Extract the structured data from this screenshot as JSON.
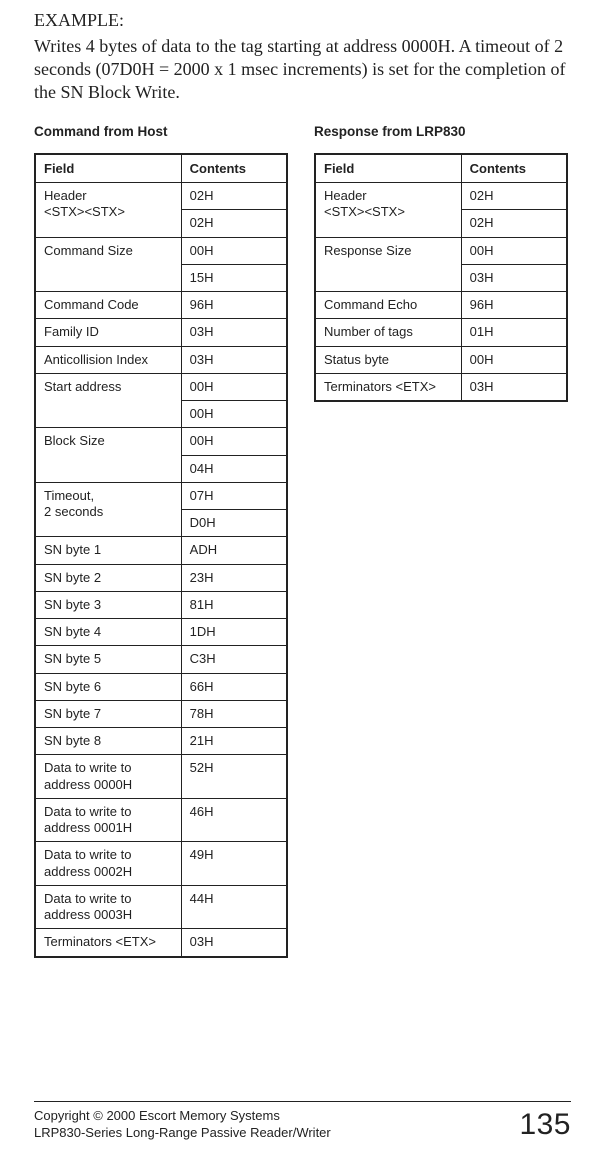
{
  "exampleLabel": "EXAMPLE:",
  "exampleText": "Writes 4 bytes of data to the tag starting at address 0000H. A timeout of 2 seconds (07D0H = 2000 x 1 msec increments) is set for the completion of the SN Block Write.",
  "leftTitle": "Command from Host",
  "rightTitle": "Response from LRP830",
  "headers": {
    "field": "Field",
    "contents": "Contents"
  },
  "left": {
    "header": {
      "field": "Header\n<STX><STX>",
      "c1": "02H",
      "c2": "02H"
    },
    "cmdSize": {
      "field": "Command Size",
      "c1": "00H",
      "c2": "15H"
    },
    "cmdCode": {
      "field": "Command Code",
      "c": "96H"
    },
    "familyId": {
      "field": "Family ID",
      "c": "03H"
    },
    "anticoll": {
      "field": "Anticollision Index",
      "c": "03H"
    },
    "startAddr": {
      "field": "Start address",
      "c1": "00H",
      "c2": "00H"
    },
    "blockSize": {
      "field": "Block Size",
      "c1": "00H",
      "c2": "04H"
    },
    "timeout": {
      "field": "Timeout,\n2 seconds",
      "c1": "07H",
      "c2": "D0H"
    },
    "sn1": {
      "field": "SN byte 1",
      "c": "ADH"
    },
    "sn2": {
      "field": "SN byte 2",
      "c": "23H"
    },
    "sn3": {
      "field": "SN byte 3",
      "c": "81H"
    },
    "sn4": {
      "field": "SN byte 4",
      "c": "1DH"
    },
    "sn5": {
      "field": "SN byte 5",
      "c": "C3H"
    },
    "sn6": {
      "field": "SN byte 6",
      "c": "66H"
    },
    "sn7": {
      "field": "SN byte 7",
      "c": "78H"
    },
    "sn8": {
      "field": "SN byte 8",
      "c": "21H"
    },
    "d0": {
      "field": "Data to write to\naddress 0000H",
      "c": "52H"
    },
    "d1": {
      "field": "Data to write to\naddress 0001H",
      "c": "46H"
    },
    "d2": {
      "field": "Data to write to\naddress 0002H",
      "c": "49H"
    },
    "d3": {
      "field": "Data to write to\naddress 0003H",
      "c": "44H"
    },
    "term": {
      "field": "Terminators <ETX>",
      "c": "03H"
    }
  },
  "right": {
    "header": {
      "field": "Header\n<STX><STX>",
      "c1": "02H",
      "c2": "02H"
    },
    "respSize": {
      "field": "Response Size",
      "c1": "00H",
      "c2": "03H"
    },
    "cmdEcho": {
      "field": "Command Echo",
      "c": "96H"
    },
    "numTags": {
      "field": "Number of tags",
      "c": "01H"
    },
    "status": {
      "field": "Status byte",
      "c": "00H"
    },
    "term": {
      "field": "Terminators <ETX>",
      "c": "03H"
    }
  },
  "footer": {
    "line1": "Copyright © 2000 Escort Memory Systems",
    "line2": "LRP830-Series Long-Range Passive Reader/Writer",
    "page": "135"
  }
}
